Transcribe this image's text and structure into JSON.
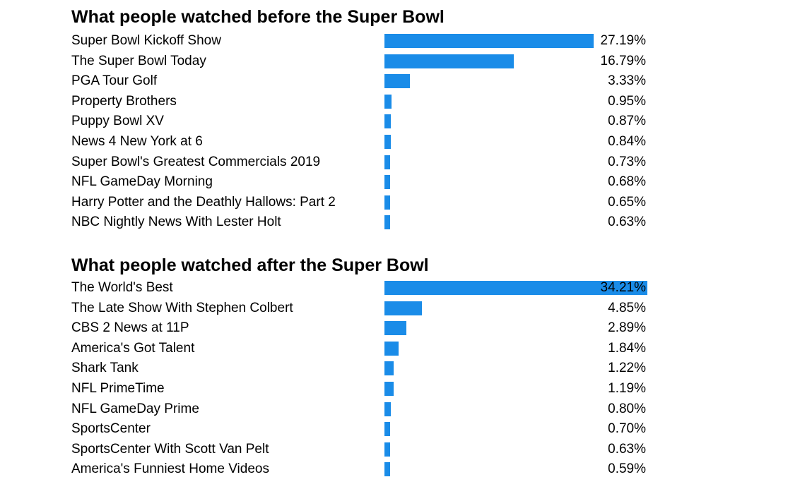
{
  "chart_data": [
    {
      "type": "bar",
      "orientation": "horizontal",
      "title": "What people watched before the Super Bowl",
      "categories": [
        "Super Bowl Kickoff Show",
        "The Super Bowl Today",
        "PGA Tour Golf",
        "Property Brothers",
        "Puppy Bowl XV",
        "News 4 New York at 6",
        "Super Bowl's Greatest Commercials 2019",
        "NFL GameDay Morning",
        "Harry Potter and the Deathly Hallows: Part 2",
        "NBC Nightly News With Lester Holt"
      ],
      "values": [
        27.19,
        16.79,
        3.33,
        0.95,
        0.87,
        0.84,
        0.73,
        0.68,
        0.65,
        0.63
      ],
      "labels": [
        "27.19%",
        "16.79%",
        "3.33%",
        "0.95%",
        "0.87%",
        "0.84%",
        "0.73%",
        "0.68%",
        "0.65%",
        "0.63%"
      ],
      "xlim": [
        0,
        34.21
      ],
      "grid": false,
      "bar_color": "#1a8ce8"
    },
    {
      "type": "bar",
      "orientation": "horizontal",
      "title": "What people watched after the Super Bowl",
      "categories": [
        "The World's Best",
        "The Late Show With Stephen Colbert",
        "CBS 2 News at 11P",
        "America's Got Talent",
        "Shark Tank",
        "NFL PrimeTime",
        "NFL GameDay Prime",
        "SportsCenter",
        "SportsCenter With Scott Van Pelt",
        "America's Funniest Home Videos"
      ],
      "values": [
        34.21,
        4.85,
        2.89,
        1.84,
        1.22,
        1.19,
        0.8,
        0.7,
        0.63,
        0.59
      ],
      "labels": [
        "34.21%",
        "4.85%",
        "2.89%",
        "1.84%",
        "1.22%",
        "1.19%",
        "0.80%",
        "0.70%",
        "0.63%",
        "0.59%"
      ],
      "xlim": [
        0,
        34.21
      ],
      "grid": false,
      "bar_color": "#1a8ce8"
    }
  ]
}
